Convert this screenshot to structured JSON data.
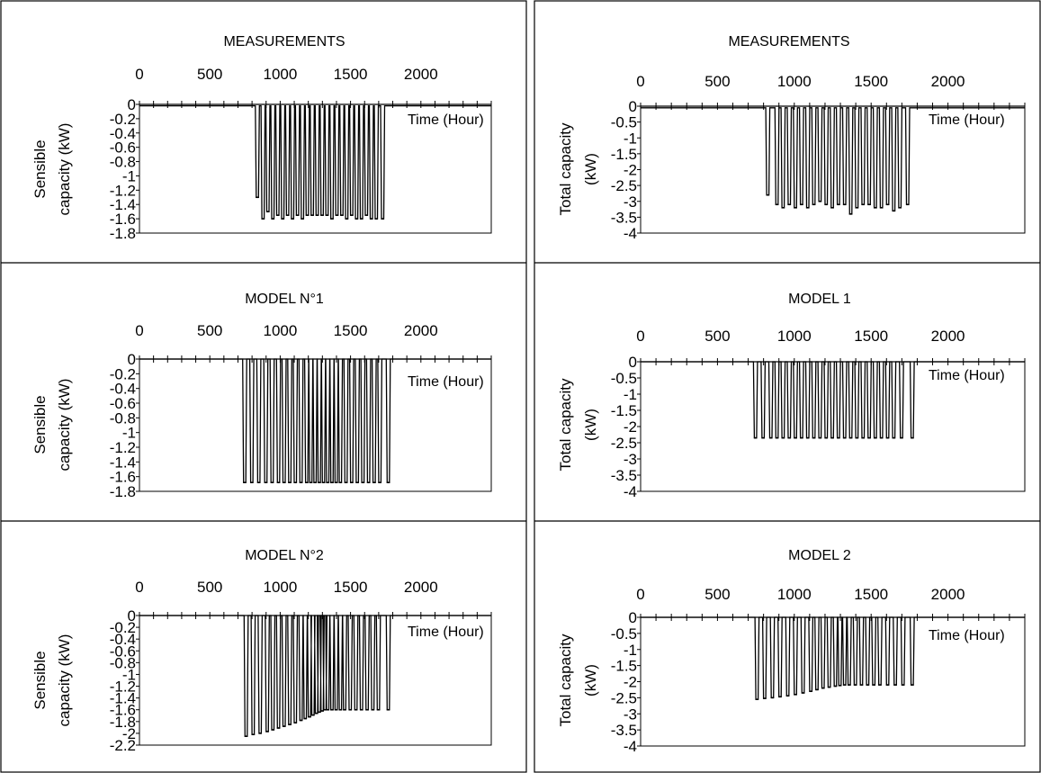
{
  "chart_data": [
    {
      "type": "line",
      "title": "MEASUREMENTS",
      "xlabel": "Time (Hour)",
      "ylabel": [
        "Sensible",
        "capacity (kW)"
      ],
      "x_ticks": [
        "0",
        "500",
        "1000",
        "1500",
        "2000"
      ],
      "y_ticks": [
        "0",
        "-0.2",
        "-0.4",
        "-0.6",
        "-0.8",
        "-1",
        "-1.2",
        "-1.4",
        "-1.6",
        "-1.8"
      ],
      "xlim": [
        0,
        2500
      ],
      "ylim": [
        -1.8,
        0
      ],
      "baseline": -0.02,
      "cycles": [
        {
          "x": 830,
          "y": -1.3
        },
        {
          "x": 870,
          "y": -1.6
        },
        {
          "x": 905,
          "y": -1.5
        },
        {
          "x": 940,
          "y": -1.6
        },
        {
          "x": 975,
          "y": -1.55
        },
        {
          "x": 1010,
          "y": -1.6
        },
        {
          "x": 1045,
          "y": -1.55
        },
        {
          "x": 1080,
          "y": -1.6
        },
        {
          "x": 1115,
          "y": -1.55
        },
        {
          "x": 1150,
          "y": -1.6
        },
        {
          "x": 1185,
          "y": -1.55
        },
        {
          "x": 1220,
          "y": -1.55
        },
        {
          "x": 1255,
          "y": -1.55
        },
        {
          "x": 1290,
          "y": -1.55
        },
        {
          "x": 1325,
          "y": -1.55
        },
        {
          "x": 1360,
          "y": -1.6
        },
        {
          "x": 1395,
          "y": -1.55
        },
        {
          "x": 1430,
          "y": -1.55
        },
        {
          "x": 1465,
          "y": -1.6
        },
        {
          "x": 1500,
          "y": -1.55
        },
        {
          "x": 1535,
          "y": -1.6
        },
        {
          "x": 1570,
          "y": -1.6
        },
        {
          "x": 1605,
          "y": -1.55
        },
        {
          "x": 1640,
          "y": -1.6
        },
        {
          "x": 1675,
          "y": -1.6
        },
        {
          "x": 1720,
          "y": -1.6
        }
      ]
    },
    {
      "type": "line",
      "title": "MEASUREMENTS",
      "xlabel": "Time (Hour)",
      "ylabel": [
        "Total capacity",
        "(kW)"
      ],
      "x_ticks": [
        "0",
        "500",
        "1000",
        "1500",
        "2000"
      ],
      "y_ticks": [
        "0",
        "-0.5",
        "-1",
        "-1.5",
        "-2",
        "-2.5",
        "-3",
        "-3.5",
        "-4"
      ],
      "xlim": [
        0,
        2500
      ],
      "ylim": [
        -4,
        0
      ],
      "baseline": -0.05,
      "cycles": [
        {
          "x": 820,
          "y": -2.8
        },
        {
          "x": 880,
          "y": -3.1
        },
        {
          "x": 920,
          "y": -3.2
        },
        {
          "x": 960,
          "y": -3.1
        },
        {
          "x": 1000,
          "y": -3.2
        },
        {
          "x": 1040,
          "y": -3.1
        },
        {
          "x": 1080,
          "y": -3.2
        },
        {
          "x": 1120,
          "y": -3.1
        },
        {
          "x": 1160,
          "y": -3.0
        },
        {
          "x": 1200,
          "y": -3.1
        },
        {
          "x": 1240,
          "y": -3.2
        },
        {
          "x": 1280,
          "y": -3.1
        },
        {
          "x": 1320,
          "y": -3.1
        },
        {
          "x": 1360,
          "y": -3.4
        },
        {
          "x": 1400,
          "y": -3.2
        },
        {
          "x": 1440,
          "y": -3.1
        },
        {
          "x": 1480,
          "y": -3.1
        },
        {
          "x": 1520,
          "y": -3.2
        },
        {
          "x": 1560,
          "y": -3.2
        },
        {
          "x": 1600,
          "y": -3.1
        },
        {
          "x": 1640,
          "y": -3.3
        },
        {
          "x": 1680,
          "y": -3.2
        },
        {
          "x": 1730,
          "y": -3.1
        }
      ]
    },
    {
      "type": "line",
      "title": "MODEL N°1",
      "xlabel": "Time (Hour)",
      "ylabel": [
        "Sensible",
        "capacity (kW)"
      ],
      "x_ticks": [
        "0",
        "500",
        "1000",
        "1500",
        "2000"
      ],
      "y_ticks": [
        "0",
        "-0.2",
        "-0.4",
        "-0.6",
        "-0.8",
        "-1",
        "-1.2",
        "-1.4",
        "-1.6",
        "-1.8"
      ],
      "xlim": [
        0,
        2500
      ],
      "ylim": [
        -1.8,
        0
      ],
      "baseline": 0,
      "cycles": [
        {
          "x": 740,
          "y": -1.68
        },
        {
          "x": 790,
          "y": -1.68
        },
        {
          "x": 840,
          "y": -1.68
        },
        {
          "x": 890,
          "y": -1.68
        },
        {
          "x": 935,
          "y": -1.68
        },
        {
          "x": 980,
          "y": -1.68
        },
        {
          "x": 1020,
          "y": -1.68
        },
        {
          "x": 1060,
          "y": -1.68
        },
        {
          "x": 1100,
          "y": -1.68
        },
        {
          "x": 1140,
          "y": -1.68
        },
        {
          "x": 1180,
          "y": -1.68
        },
        {
          "x": 1210,
          "y": -1.68
        },
        {
          "x": 1240,
          "y": -1.68
        },
        {
          "x": 1270,
          "y": -1.68
        },
        {
          "x": 1300,
          "y": -1.68
        },
        {
          "x": 1330,
          "y": -1.68
        },
        {
          "x": 1360,
          "y": -1.68
        },
        {
          "x": 1390,
          "y": -1.68
        },
        {
          "x": 1420,
          "y": -1.68
        },
        {
          "x": 1460,
          "y": -1.68
        },
        {
          "x": 1500,
          "y": -1.68
        },
        {
          "x": 1540,
          "y": -1.68
        },
        {
          "x": 1580,
          "y": -1.68
        },
        {
          "x": 1620,
          "y": -1.68
        },
        {
          "x": 1660,
          "y": -1.68
        },
        {
          "x": 1700,
          "y": -1.68
        },
        {
          "x": 1760,
          "y": -1.68
        }
      ]
    },
    {
      "type": "line",
      "title": "MODEL 1",
      "xlabel": "Time (Hour)",
      "ylabel": [
        "Total capacity",
        "(kW)"
      ],
      "x_ticks": [
        "0",
        "500",
        "1000",
        "1500",
        "2000"
      ],
      "y_ticks": [
        "0",
        "-0.5",
        "-1",
        "-1.5",
        "-2",
        "-2.5",
        "-3",
        "-3.5",
        "-4"
      ],
      "xlim": [
        0,
        2500
      ],
      "ylim": [
        -4,
        0
      ],
      "baseline": 0,
      "cycles": [
        {
          "x": 740,
          "y": -2.35
        },
        {
          "x": 790,
          "y": -2.35
        },
        {
          "x": 840,
          "y": -2.35
        },
        {
          "x": 880,
          "y": -2.35
        },
        {
          "x": 920,
          "y": -2.35
        },
        {
          "x": 960,
          "y": -2.35
        },
        {
          "x": 1000,
          "y": -2.35
        },
        {
          "x": 1040,
          "y": -2.35
        },
        {
          "x": 1080,
          "y": -2.35
        },
        {
          "x": 1120,
          "y": -2.35
        },
        {
          "x": 1160,
          "y": -2.35
        },
        {
          "x": 1200,
          "y": -2.35
        },
        {
          "x": 1240,
          "y": -2.35
        },
        {
          "x": 1280,
          "y": -2.35
        },
        {
          "x": 1320,
          "y": -2.35
        },
        {
          "x": 1360,
          "y": -2.35
        },
        {
          "x": 1400,
          "y": -2.35
        },
        {
          "x": 1440,
          "y": -2.35
        },
        {
          "x": 1480,
          "y": -2.35
        },
        {
          "x": 1520,
          "y": -2.35
        },
        {
          "x": 1560,
          "y": -2.35
        },
        {
          "x": 1600,
          "y": -2.35
        },
        {
          "x": 1640,
          "y": -2.35
        },
        {
          "x": 1690,
          "y": -2.35
        },
        {
          "x": 1760,
          "y": -2.35
        }
      ]
    },
    {
      "type": "line",
      "title": "MODEL N°2",
      "xlabel": "Time (Hour)",
      "ylabel": [
        "Sensible",
        "capacity (kW)"
      ],
      "x_ticks": [
        "0",
        "500",
        "1000",
        "1500",
        "2000"
      ],
      "y_ticks": [
        "0",
        "-0.2",
        "-0.4",
        "-0.6",
        "-0.8",
        "-1",
        "-1.2",
        "-1.4",
        "-1.6",
        "-1.8",
        "-2",
        "-2.2"
      ],
      "xlim": [
        0,
        2500
      ],
      "ylim": [
        -2.2,
        0
      ],
      "baseline": 0,
      "cycles": [
        {
          "x": 750,
          "y": -2.05
        },
        {
          "x": 800,
          "y": -2.02
        },
        {
          "x": 850,
          "y": -2.0
        },
        {
          "x": 900,
          "y": -1.97
        },
        {
          "x": 940,
          "y": -1.94
        },
        {
          "x": 980,
          "y": -1.91
        },
        {
          "x": 1020,
          "y": -1.88
        },
        {
          "x": 1060,
          "y": -1.85
        },
        {
          "x": 1100,
          "y": -1.82
        },
        {
          "x": 1140,
          "y": -1.78
        },
        {
          "x": 1170,
          "y": -1.75
        },
        {
          "x": 1200,
          "y": -1.72
        },
        {
          "x": 1225,
          "y": -1.69
        },
        {
          "x": 1250,
          "y": -1.66
        },
        {
          "x": 1270,
          "y": -1.64
        },
        {
          "x": 1290,
          "y": -1.62
        },
        {
          "x": 1310,
          "y": -1.6
        },
        {
          "x": 1330,
          "y": -1.6
        },
        {
          "x": 1360,
          "y": -1.6
        },
        {
          "x": 1390,
          "y": -1.6
        },
        {
          "x": 1420,
          "y": -1.6
        },
        {
          "x": 1450,
          "y": -1.6
        },
        {
          "x": 1490,
          "y": -1.6
        },
        {
          "x": 1530,
          "y": -1.6
        },
        {
          "x": 1570,
          "y": -1.6
        },
        {
          "x": 1610,
          "y": -1.6
        },
        {
          "x": 1650,
          "y": -1.6
        },
        {
          "x": 1690,
          "y": -1.6
        },
        {
          "x": 1760,
          "y": -1.6
        }
      ]
    },
    {
      "type": "line",
      "title": "MODEL 2",
      "xlabel": "Time (Hour)",
      "ylabel": [
        "Total capacity",
        "(kW)"
      ],
      "x_ticks": [
        "0",
        "500",
        "1000",
        "1500",
        "2000"
      ],
      "y_ticks": [
        "0",
        "-0.5",
        "-1",
        "-1.5",
        "-2",
        "-2.5",
        "-3",
        "-3.5",
        "-4"
      ],
      "xlim": [
        0,
        2500
      ],
      "ylim": [
        -4,
        0
      ],
      "baseline": 0,
      "cycles": [
        {
          "x": 750,
          "y": -2.55
        },
        {
          "x": 800,
          "y": -2.52
        },
        {
          "x": 850,
          "y": -2.5
        },
        {
          "x": 900,
          "y": -2.47
        },
        {
          "x": 950,
          "y": -2.44
        },
        {
          "x": 1000,
          "y": -2.4
        },
        {
          "x": 1050,
          "y": -2.35
        },
        {
          "x": 1100,
          "y": -2.3
        },
        {
          "x": 1140,
          "y": -2.25
        },
        {
          "x": 1180,
          "y": -2.2
        },
        {
          "x": 1220,
          "y": -2.17
        },
        {
          "x": 1260,
          "y": -2.14
        },
        {
          "x": 1290,
          "y": -2.12
        },
        {
          "x": 1320,
          "y": -2.1
        },
        {
          "x": 1350,
          "y": -2.1
        },
        {
          "x": 1390,
          "y": -2.1
        },
        {
          "x": 1430,
          "y": -2.1
        },
        {
          "x": 1470,
          "y": -2.1
        },
        {
          "x": 1510,
          "y": -2.1
        },
        {
          "x": 1550,
          "y": -2.1
        },
        {
          "x": 1600,
          "y": -2.1
        },
        {
          "x": 1650,
          "y": -2.1
        },
        {
          "x": 1700,
          "y": -2.1
        },
        {
          "x": 1760,
          "y": -2.1
        }
      ]
    }
  ]
}
